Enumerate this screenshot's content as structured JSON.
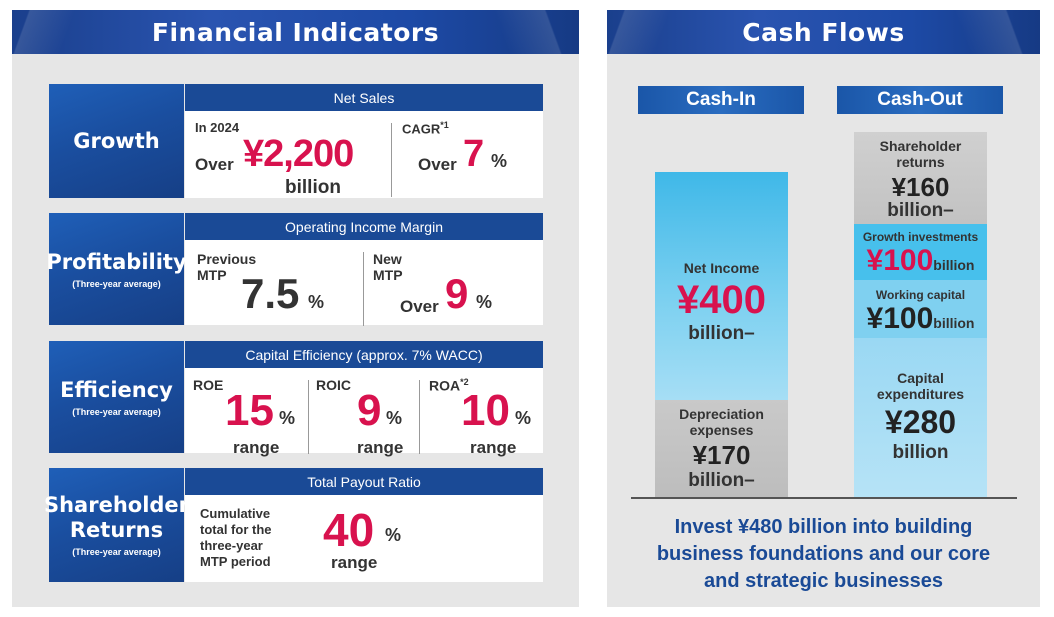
{
  "left": {
    "title": "Financial Indicators",
    "growth": {
      "label": "Growth",
      "header": "Net Sales",
      "year": "In 2024",
      "over1": "Over",
      "value1": "¥2,200",
      "unit1": "billion",
      "cagr": "CAGR",
      "cagr_note": "*1",
      "over2": "Over",
      "value2": "7",
      "pct": "%"
    },
    "profitability": {
      "label": "Profitability",
      "sub": "(Three-year average)",
      "header": "Operating Income Margin",
      "prev_line1": "Previous",
      "prev_line2": "MTP",
      "prev_value": "7.5",
      "pct": "%",
      "new_line1": "New",
      "new_line2": "MTP",
      "over": "Over",
      "new_value": "9",
      "pct2": "%"
    },
    "efficiency": {
      "label": "Efficiency",
      "sub": "(Three-year average)",
      "header": "Capital Efficiency (approx. 7% WACC)",
      "roe": "ROE",
      "roe_value": "15",
      "roic": "ROIC",
      "roic_value": "9",
      "roa": "ROA",
      "roa_note": "*2",
      "roa_value": "10",
      "pct": "%",
      "range": "range"
    },
    "shareholder": {
      "label1": "Shareholder",
      "label2": "Returns",
      "sub": "(Three-year average)",
      "header": "Total Payout Ratio",
      "desc1": "Cumulative",
      "desc2": "total for the",
      "desc3": "three-year",
      "desc4": "MTP period",
      "value": "40",
      "pct": "%",
      "range": "range"
    }
  },
  "right": {
    "title": "Cash Flows",
    "cash_in": "Cash-In",
    "cash_out": "Cash-Out",
    "net_income_label": "Net Income",
    "net_income_value": "¥400",
    "net_income_unit": "billion–",
    "depreciation_line1": "Depreciation",
    "depreciation_line2": "expenses",
    "depreciation_value": "¥170",
    "depreciation_unit": "billion–",
    "sh_line1": "Shareholder",
    "sh_line2": "returns",
    "sh_value": "¥160",
    "sh_unit": "billion–",
    "growth_label": "Growth investments",
    "growth_value": "¥100",
    "growth_unit": "billion",
    "wc_label": "Working capital",
    "wc_value": "¥100",
    "wc_unit": "billion",
    "capex_line1": "Capital",
    "capex_line2": "expenditures",
    "capex_value": "¥280",
    "capex_unit": "billion",
    "invest_line1": "Invest ¥480 billion into building",
    "invest_line2": "business foundations and our core",
    "invest_line3": "and strategic businesses"
  },
  "colors": {
    "accent_pink": "#d8124e",
    "navy": "#1a4a96",
    "sky": "#4fc3ea",
    "gray": "#c8c8c8"
  }
}
